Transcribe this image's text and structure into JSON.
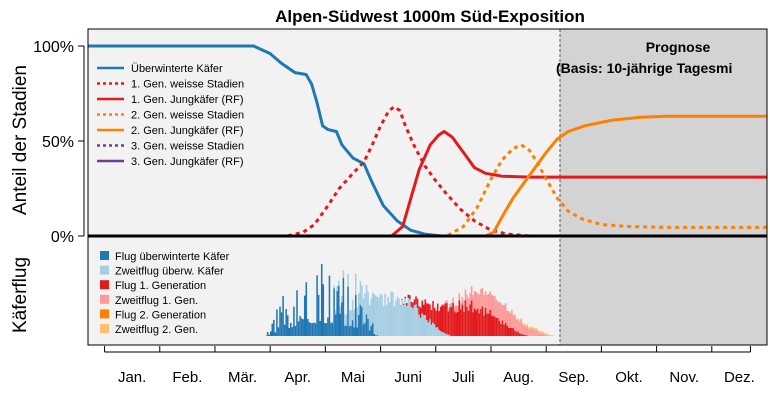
{
  "chart_data": {
    "type": "line",
    "title": "Alpen-Südwest 1000m Süd-Exposition",
    "ylabel_top": "Anteil der Stadien",
    "ylabel_bottom": "Käferflug",
    "y_ticks": [
      "100%",
      "50%",
      "0%"
    ],
    "ylim": [
      0,
      100
    ],
    "x_unit": "month",
    "xlim": [
      0,
      12.3
    ],
    "months": [
      "Jan.",
      "Feb.",
      "Mär.",
      "Apr.",
      "Mai",
      "Juni",
      "Juli",
      "Aug.",
      "Sep.",
      "Okt.",
      "Nov.",
      "Dez."
    ],
    "prognose_start": 8.55,
    "prognose_title": "Prognose",
    "prognose_subtitle": "(Basis: 10-jährige Tagesmi",
    "lines": [
      {
        "name": "Überwinterte Käfer",
        "color": "#1f78b4",
        "dash": false,
        "points": [
          [
            0,
            100
          ],
          [
            3.0,
            100
          ],
          [
            3.3,
            96
          ],
          [
            3.5,
            91
          ],
          [
            3.75,
            86
          ],
          [
            3.95,
            85
          ],
          [
            4.05,
            80
          ],
          [
            4.15,
            70
          ],
          [
            4.25,
            58
          ],
          [
            4.35,
            56
          ],
          [
            4.5,
            55
          ],
          [
            4.6,
            48
          ],
          [
            4.8,
            41
          ],
          [
            5.0,
            38
          ],
          [
            5.15,
            28
          ],
          [
            5.35,
            16
          ],
          [
            5.6,
            8
          ],
          [
            5.85,
            3
          ],
          [
            6.1,
            1
          ],
          [
            6.4,
            0
          ],
          [
            12.3,
            0
          ]
        ]
      },
      {
        "name": "1. Gen. weisse Stadien",
        "color": "#e31a1c",
        "dash": true,
        "points": [
          [
            0,
            0
          ],
          [
            3.6,
            0
          ],
          [
            3.9,
            2
          ],
          [
            4.1,
            6
          ],
          [
            4.3,
            14
          ],
          [
            4.55,
            25
          ],
          [
            4.8,
            33
          ],
          [
            5.0,
            39
          ],
          [
            5.15,
            48
          ],
          [
            5.3,
            58
          ],
          [
            5.45,
            66
          ],
          [
            5.55,
            68
          ],
          [
            5.65,
            66
          ],
          [
            5.75,
            58
          ],
          [
            5.9,
            48
          ],
          [
            6.1,
            37
          ],
          [
            6.3,
            29
          ],
          [
            6.5,
            22
          ],
          [
            6.75,
            14
          ],
          [
            7.0,
            8
          ],
          [
            7.3,
            3
          ],
          [
            7.6,
            1
          ],
          [
            8.0,
            0
          ],
          [
            12.3,
            0
          ]
        ]
      },
      {
        "name": "1. Gen. Jungkäfer (RF)",
        "color": "#e31a1c",
        "dash": false,
        "points": [
          [
            0,
            0
          ],
          [
            5.5,
            0
          ],
          [
            5.7,
            5
          ],
          [
            5.85,
            20
          ],
          [
            6.0,
            35
          ],
          [
            6.2,
            48
          ],
          [
            6.35,
            53
          ],
          [
            6.45,
            55
          ],
          [
            6.6,
            52
          ],
          [
            6.8,
            44
          ],
          [
            7.0,
            36
          ],
          [
            7.2,
            33
          ],
          [
            7.5,
            31.5
          ],
          [
            8.0,
            31
          ],
          [
            12.3,
            31
          ]
        ]
      },
      {
        "name": "2. Gen. weisse Stadien",
        "color": "#ff7f00",
        "dash": true,
        "points": [
          [
            0,
            0
          ],
          [
            6.5,
            0
          ],
          [
            6.8,
            5
          ],
          [
            7.05,
            15
          ],
          [
            7.3,
            30
          ],
          [
            7.5,
            40
          ],
          [
            7.7,
            46
          ],
          [
            7.85,
            48
          ],
          [
            8.0,
            45
          ],
          [
            8.15,
            38
          ],
          [
            8.3,
            30
          ],
          [
            8.5,
            20
          ],
          [
            8.7,
            13
          ],
          [
            8.95,
            9
          ],
          [
            9.3,
            6
          ],
          [
            9.8,
            5
          ],
          [
            10.5,
            4.5
          ],
          [
            12.3,
            4.5
          ]
        ]
      },
      {
        "name": "2. Gen. Jungkäfer (RF)",
        "color": "#ff7f00",
        "dash": false,
        "points": [
          [
            0,
            0
          ],
          [
            7.2,
            0
          ],
          [
            7.35,
            2
          ],
          [
            7.5,
            10
          ],
          [
            7.7,
            20
          ],
          [
            7.9,
            28
          ],
          [
            8.1,
            36
          ],
          [
            8.3,
            44
          ],
          [
            8.5,
            51
          ],
          [
            8.7,
            55
          ],
          [
            9.0,
            58
          ],
          [
            9.5,
            61
          ],
          [
            10.0,
            62.5
          ],
          [
            10.5,
            63
          ],
          [
            12.3,
            63
          ]
        ]
      },
      {
        "name": "3. Gen. weisse Stadien",
        "color": "#6a3d9a",
        "dash": true,
        "points": [
          [
            0,
            0
          ],
          [
            12.3,
            0
          ]
        ]
      },
      {
        "name": "3. Gen. Jungkäfer (RF)",
        "color": "#6a3d9a",
        "dash": false,
        "points": [
          [
            0,
            0
          ],
          [
            12.3,
            0
          ]
        ]
      }
    ],
    "flight_series": [
      {
        "name": "Flug überwinterte Käfer",
        "color": "#1f78b4",
        "start": 3.2,
        "end": 5.55,
        "peak": 7.5,
        "profile": "spiky"
      },
      {
        "name": "Zweitflug überw. Käfer",
        "color": "#a6cee3",
        "start": 4.3,
        "end": 6.6,
        "peak": 4.0,
        "profile": "hump"
      },
      {
        "name": "Flug 1. Generation",
        "color": "#e31a1c",
        "start": 5.6,
        "end": 8.0,
        "peak": 3.2,
        "profile": "hump"
      },
      {
        "name": "Zweitflug 1. Gen.",
        "color": "#fb9a99",
        "start": 6.3,
        "end": 8.4,
        "peak": 2.0,
        "profile": "hump"
      },
      {
        "name": "Flug 2. Generation",
        "color": "#fdbf6f",
        "start": 7.5,
        "end": 8.5,
        "peak": 0.2,
        "profile": "hump"
      },
      {
        "name": "Zweitflug 2. Gen.",
        "color": "#fdbf6f",
        "start": 8.0,
        "end": 8.5,
        "peak": 0.1,
        "profile": "hump"
      }
    ],
    "flight_legend": [
      {
        "name": "Flug überwinterte Käfer",
        "color": "#1f78b4"
      },
      {
        "name": "Zweitflug überw. Käfer",
        "color": "#a6cee3"
      },
      {
        "name": "Flug 1. Generation",
        "color": "#e31a1c"
      },
      {
        "name": "Zweitflug 1. Gen.",
        "color": "#fb9a99"
      },
      {
        "name": "Flug 2. Generation",
        "color": "#ff7f00"
      },
      {
        "name": "Zweitflug 2. Gen.",
        "color": "#fdbf6f"
      }
    ],
    "legend_top_position": "top-left",
    "legend_bottom_position": "bottom-left",
    "colors": {
      "plot_bg": "#f2f2f2",
      "prognose_bg": "#d3d3d3",
      "axis": "#000000"
    }
  }
}
